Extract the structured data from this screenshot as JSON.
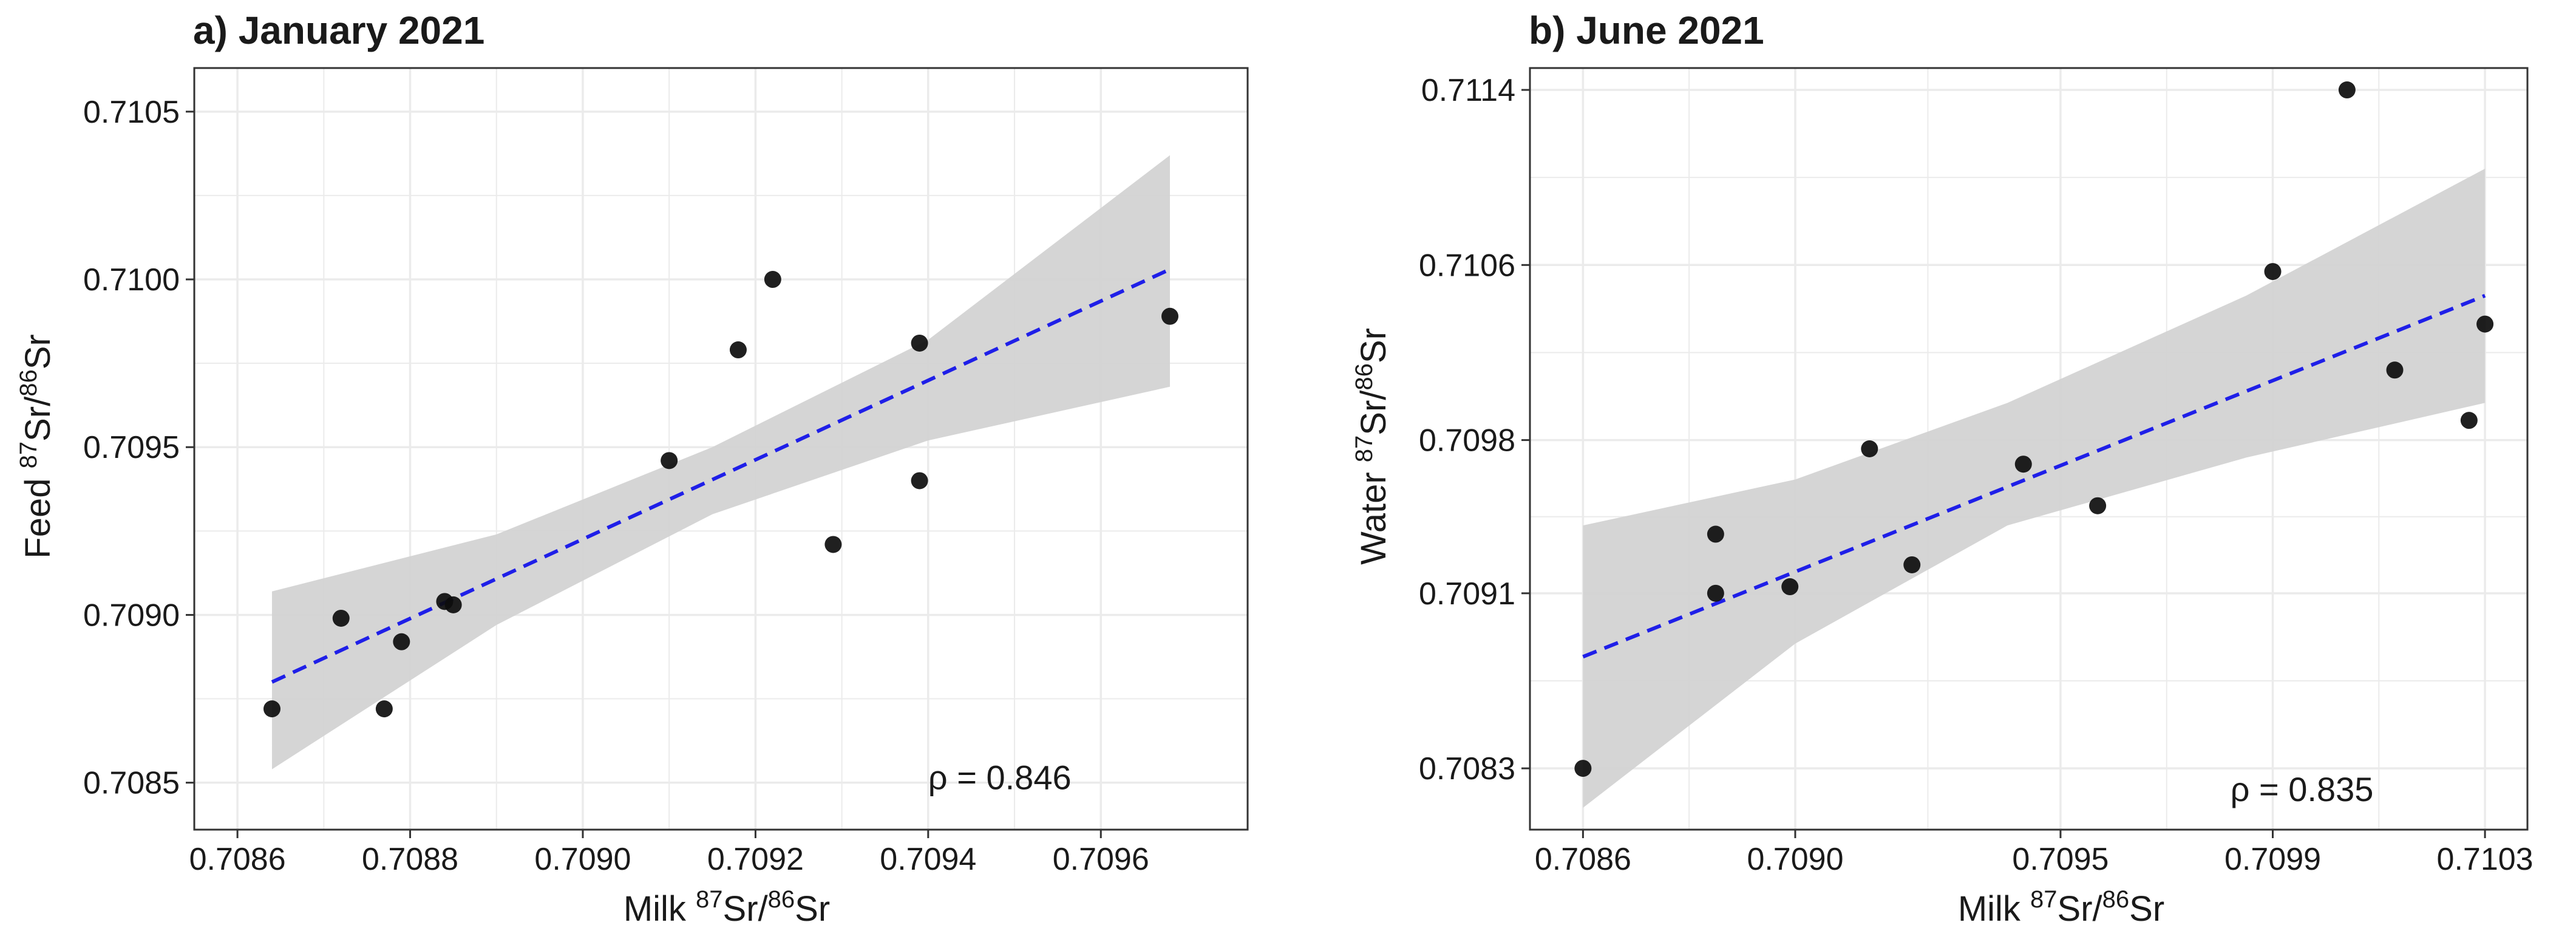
{
  "chart_data": [
    {
      "id": "a",
      "type": "scatter",
      "title": "a) January 2021",
      "xlabel": {
        "prefix": "Milk ",
        "isotope_a": "87",
        "element_a": "Sr/",
        "isotope_b": "86",
        "element_b": "Sr"
      },
      "ylabel": {
        "prefix": "Feed ",
        "isotope_a": "87",
        "element_a": "Sr/",
        "isotope_b": "86",
        "element_b": "Sr"
      },
      "xlim": [
        0.70855,
        0.70977
      ],
      "ylim": [
        0.70836,
        0.71063
      ],
      "xticks": [
        "0.7086",
        "0.7088",
        "0.7090",
        "0.7092",
        "0.7094",
        "0.7096"
      ],
      "xtick_values": [
        0.7086,
        0.7088,
        0.709,
        0.7092,
        0.7094,
        0.7096
      ],
      "yticks": [
        "0.7085",
        "0.7090",
        "0.7095",
        "0.7100",
        "0.7105"
      ],
      "ytick_values": [
        0.7085,
        0.709,
        0.7095,
        0.71,
        0.7105
      ],
      "grid": true,
      "points": [
        {
          "x": 0.70864,
          "y": 0.70872
        },
        {
          "x": 0.70872,
          "y": 0.70899
        },
        {
          "x": 0.70877,
          "y": 0.70872
        },
        {
          "x": 0.70879,
          "y": 0.70892
        },
        {
          "x": 0.70884,
          "y": 0.70904
        },
        {
          "x": 0.70885,
          "y": 0.70903
        },
        {
          "x": 0.7091,
          "y": 0.70946
        },
        {
          "x": 0.70918,
          "y": 0.70979
        },
        {
          "x": 0.70922,
          "y": 0.71
        },
        {
          "x": 0.70929,
          "y": 0.70921
        },
        {
          "x": 0.70939,
          "y": 0.70981
        },
        {
          "x": 0.70939,
          "y": 0.7094
        },
        {
          "x": 0.70968,
          "y": 0.70989
        }
      ],
      "fit": {
        "x": [
          0.70864,
          0.70968
        ],
        "y": [
          0.7088,
          0.71003
        ]
      },
      "ci_band": [
        {
          "x": 0.70864,
          "lo": 0.70854,
          "hi": 0.70907
        },
        {
          "x": 0.7089,
          "lo": 0.70897,
          "hi": 0.70924
        },
        {
          "x": 0.70915,
          "lo": 0.7093,
          "hi": 0.7095
        },
        {
          "x": 0.7094,
          "lo": 0.70952,
          "hi": 0.70982
        },
        {
          "x": 0.70968,
          "lo": 0.70968,
          "hi": 0.71037
        }
      ],
      "annotation": "ρ = 0.846",
      "annotation_at": {
        "x": 0.7094,
        "y": 0.70848
      },
      "colors": {
        "point": "#0d0d0d",
        "fit": "#1f1fe8",
        "band": "#d3d3d3",
        "grid": "#ebebeb",
        "frame": "#333333"
      }
    },
    {
      "id": "b",
      "type": "scatter",
      "title": "b) June 2021",
      "xlabel": {
        "prefix": "Milk ",
        "isotope_a": "87",
        "element_a": "Sr/",
        "isotope_b": "86",
        "element_b": "Sr"
      },
      "ylabel": {
        "prefix": "Water ",
        "isotope_a": "87",
        "element_a": "Sr/",
        "isotope_b": "86",
        "element_b": "Sr"
      },
      "xlim": [
        0.7085,
        0.71038
      ],
      "ylim": [
        0.70802,
        0.7115
      ],
      "xticks": [
        "0.7086",
        "0.7090",
        "0.7095",
        "0.7099",
        "0.7103"
      ],
      "xtick_values": [
        0.7086,
        0.709,
        0.7095,
        0.7099,
        0.7103
      ],
      "yticks": [
        "0.7083",
        "0.7091",
        "0.7098",
        "0.7106",
        "0.7114"
      ],
      "ytick_values": [
        0.7083,
        0.7091,
        0.7098,
        0.7106,
        0.7114
      ],
      "grid": true,
      "points": [
        {
          "x": 0.7086,
          "y": 0.7083
        },
        {
          "x": 0.70885,
          "y": 0.70937
        },
        {
          "x": 0.70885,
          "y": 0.7091
        },
        {
          "x": 0.70899,
          "y": 0.70913
        },
        {
          "x": 0.70914,
          "y": 0.70976
        },
        {
          "x": 0.70922,
          "y": 0.70923
        },
        {
          "x": 0.70943,
          "y": 0.70969
        },
        {
          "x": 0.70957,
          "y": 0.7095
        },
        {
          "x": 0.7099,
          "y": 0.71057
        },
        {
          "x": 0.71004,
          "y": 0.7114
        },
        {
          "x": 0.71013,
          "y": 0.71012
        },
        {
          "x": 0.71027,
          "y": 0.70989
        },
        {
          "x": 0.7103,
          "y": 0.71033
        }
      ],
      "fit": {
        "x": [
          0.7086,
          0.7103
        ],
        "y": [
          0.70881,
          0.71046
        ]
      },
      "ci_band": [
        {
          "x": 0.7086,
          "lo": 0.70812,
          "hi": 0.70941
        },
        {
          "x": 0.709,
          "lo": 0.70887,
          "hi": 0.70962
        },
        {
          "x": 0.7094,
          "lo": 0.70941,
          "hi": 0.70997
        },
        {
          "x": 0.70985,
          "lo": 0.70972,
          "hi": 0.71046
        },
        {
          "x": 0.7103,
          "lo": 0.70997,
          "hi": 0.71104
        }
      ],
      "annotation": "ρ = 0.835",
      "annotation_at": {
        "x": 0.70982,
        "y": 0.70815
      },
      "colors": {
        "point": "#0d0d0d",
        "fit": "#1f1fe8",
        "band": "#d3d3d3",
        "grid": "#ebebeb",
        "frame": "#333333"
      }
    }
  ]
}
